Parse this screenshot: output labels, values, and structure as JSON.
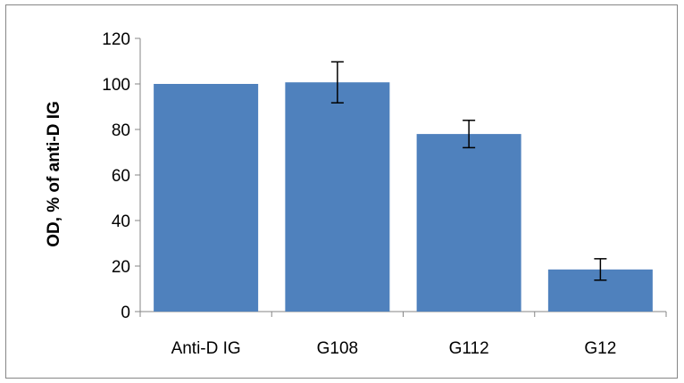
{
  "chart_data": {
    "type": "bar",
    "title": "",
    "xlabel": "",
    "ylabel": "OD, % of anti-D IG",
    "categories": [
      "Anti-D IG",
      "G108",
      "G112",
      "G12"
    ],
    "values": [
      100,
      100.7,
      78,
      18.5
    ],
    "error": [
      0,
      9,
      6,
      4.7
    ],
    "ylim": [
      0,
      120
    ],
    "yticks": [
      0,
      20,
      40,
      60,
      80,
      100,
      120
    ],
    "grid": false,
    "legend": "none",
    "bar_color": "#4f81bd"
  }
}
